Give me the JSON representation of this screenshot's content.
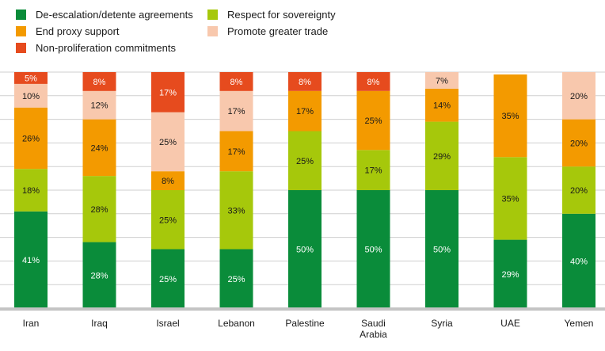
{
  "chart_data": {
    "type": "bar",
    "stacked": true,
    "orientation": "vertical",
    "categories": [
      "Iran",
      "Iraq",
      "Israel",
      "Lebanon",
      "Palestine",
      "Saudi\nArabia",
      "Syria",
      "UAE",
      "Yemen"
    ],
    "series": [
      {
        "name": "De-escalation/detente agreements",
        "color": "#0a8c3a",
        "values": [
          41,
          28,
          25,
          25,
          50,
          50,
          50,
          29,
          40
        ]
      },
      {
        "name": "Respect for sovereignty",
        "color": "#a6c80b",
        "values": [
          18,
          28,
          25,
          33,
          25,
          17,
          29,
          35,
          20
        ]
      },
      {
        "name": "End proxy support",
        "color": "#f39a00",
        "values": [
          26,
          24,
          8,
          17,
          17,
          25,
          14,
          35,
          20
        ]
      },
      {
        "name": "Promote greater trade",
        "color": "#f8c8ad",
        "values": [
          10,
          12,
          25,
          17,
          0,
          0,
          7,
          0,
          20
        ]
      },
      {
        "name": "Non-proliferation commitments",
        "color": "#e64b1e",
        "values": [
          5,
          8,
          17,
          8,
          8,
          8,
          0,
          0,
          0
        ]
      }
    ],
    "data_labels": [
      [
        "41%",
        "28%",
        "25%",
        "25%",
        "50%",
        "50%",
        "50%",
        "29%",
        "40%"
      ],
      [
        "18%",
        "28%",
        "25%",
        "33%",
        "25%",
        "17%",
        "29%",
        "35%",
        "20%"
      ],
      [
        "26%",
        "24%",
        "8%",
        "17%",
        "17%",
        "25%",
        "14%",
        "35%",
        "20%"
      ],
      [
        "10%",
        "12%",
        "25%",
        "17%",
        "",
        "",
        "7%",
        "",
        "20%"
      ],
      [
        "5%",
        "8%",
        "17%",
        "8%",
        "8%",
        "8%",
        "",
        "",
        ""
      ]
    ],
    "ylim": [
      0,
      100
    ],
    "grid": true,
    "legend_placement": "top-left",
    "title": "",
    "xlabel": "",
    "ylabel": ""
  }
}
